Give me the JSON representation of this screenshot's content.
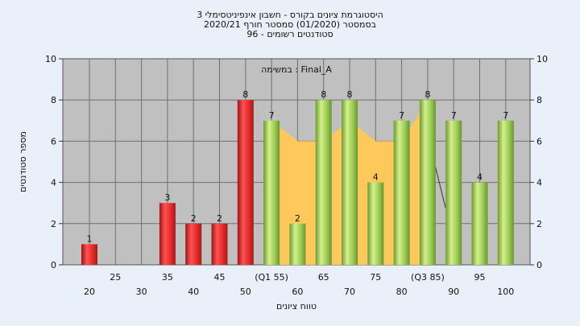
{
  "chart_data": {
    "type": "bar",
    "title_lines": [
      "היסטוגרמת ציונים בקורס - חשבון אינפיניטסימלי 3",
      "בסמסטר  (01/2020)  סמסטר חורף  2020/21",
      "סטודנטים רשומים - 96"
    ],
    "subtitle": "במשימה : Final_A",
    "xlabel": "טווח ציונים",
    "ylabel": "מספר סטודנטים",
    "ylim": [
      0,
      10
    ],
    "yticks": [
      0,
      2,
      4,
      6,
      8,
      10
    ],
    "x_ticks": [
      "20",
      "25",
      "30",
      "35",
      "40",
      "45",
      "50",
      "(Q1 55)",
      "60",
      "65",
      "70",
      "75",
      "80",
      "(Q3 85)",
      "90",
      "95",
      "100"
    ],
    "bars": [
      {
        "x": 20,
        "value": 1,
        "group": "red"
      },
      {
        "x": 35,
        "value": 3,
        "group": "red"
      },
      {
        "x": 40,
        "value": 2,
        "group": "red"
      },
      {
        "x": 45,
        "value": 2,
        "group": "red"
      },
      {
        "x": 50,
        "value": 8,
        "group": "red"
      },
      {
        "x": 55,
        "value": 7,
        "group": "green"
      },
      {
        "x": 60,
        "value": 2,
        "group": "green"
      },
      {
        "x": 65,
        "value": 8,
        "group": "green"
      },
      {
        "x": 70,
        "value": 8,
        "group": "green"
      },
      {
        "x": 75,
        "value": 4,
        "group": "green"
      },
      {
        "x": 80,
        "value": 7,
        "group": "green"
      },
      {
        "x": 85,
        "value": 8,
        "group": "green"
      },
      {
        "x": 90,
        "value": 7,
        "group": "green"
      },
      {
        "x": 95,
        "value": 4,
        "group": "green"
      },
      {
        "x": 100,
        "value": 7,
        "group": "green"
      }
    ],
    "band": {
      "color": "#ffc85a",
      "points": [
        [
          55,
          7
        ],
        [
          60,
          6
        ],
        [
          65,
          6
        ],
        [
          70,
          7
        ],
        [
          75,
          6
        ],
        [
          80,
          6
        ],
        [
          85,
          8
        ]
      ]
    },
    "grid": true,
    "colors": {
      "background": "#e9f0f9",
      "plot_bg": "#c0c0c0",
      "grid": "#707070",
      "red": "#e52b2b",
      "green": "#99cc55"
    }
  }
}
